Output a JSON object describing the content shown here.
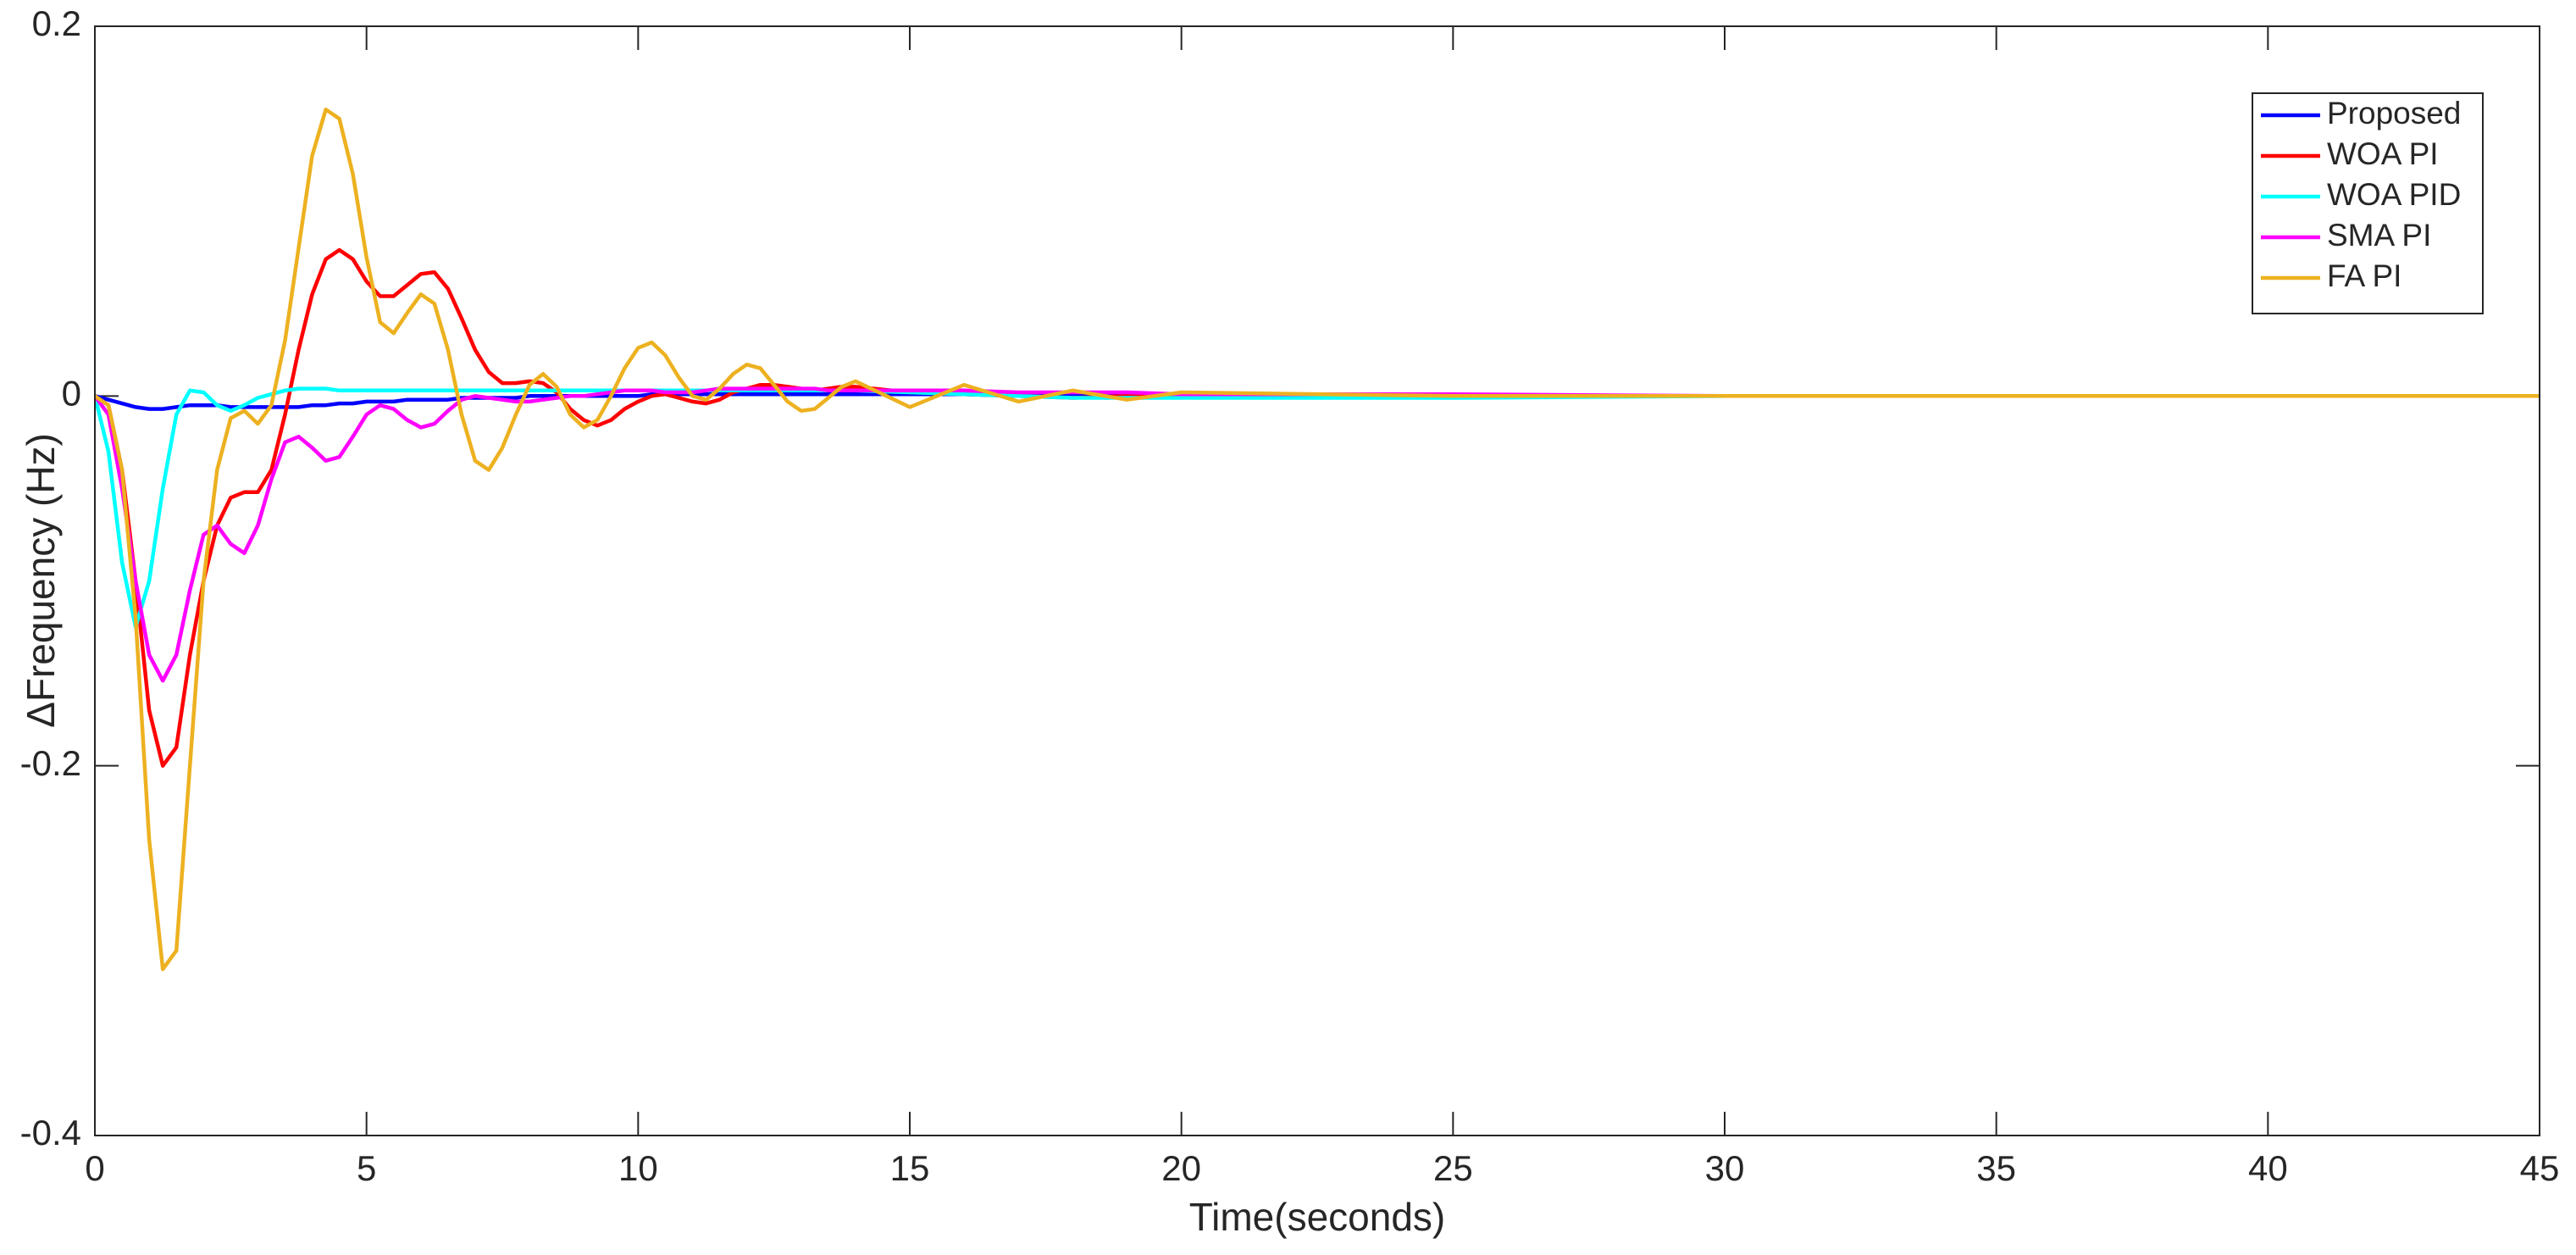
{
  "chart_data": {
    "type": "line",
    "x_label": "Time(seconds)",
    "y_label": "ΔFrequency (Hz)",
    "x": [
      0,
      0.25,
      0.5,
      0.75,
      1,
      1.25,
      1.5,
      1.75,
      2,
      2.25,
      2.5,
      2.75,
      3,
      3.25,
      3.5,
      3.75,
      4,
      4.25,
      4.5,
      4.75,
      5,
      5.25,
      5.5,
      5.75,
      6,
      6.25,
      6.5,
      6.75,
      7,
      7.25,
      7.5,
      7.75,
      8,
      8.25,
      8.5,
      8.75,
      9,
      9.25,
      9.5,
      9.75,
      10,
      10.25,
      10.5,
      10.75,
      11,
      11.25,
      11.5,
      11.75,
      12,
      12.25,
      12.5,
      12.75,
      13,
      13.25,
      13.5,
      13.75,
      14,
      15,
      16,
      17,
      18,
      19,
      20,
      25,
      30,
      35,
      40,
      45
    ],
    "series": [
      {
        "name": "Proposed",
        "color": "#0000ff",
        "values": [
          0,
          -0.002,
          -0.004,
          -0.006,
          -0.007,
          -0.007,
          -0.006,
          -0.005,
          -0.005,
          -0.005,
          -0.006,
          -0.006,
          -0.006,
          -0.006,
          -0.006,
          -0.006,
          -0.005,
          -0.005,
          -0.004,
          -0.004,
          -0.003,
          -0.003,
          -0.003,
          -0.002,
          -0.002,
          -0.002,
          -0.002,
          -0.001,
          -0.001,
          -0.001,
          -0.001,
          -0.001,
          0,
          0,
          0,
          0,
          0,
          0,
          0,
          0,
          0,
          0.001,
          0.001,
          0.001,
          0.001,
          0.001,
          0.001,
          0.001,
          0.001,
          0.001,
          0.001,
          0.001,
          0.001,
          0.001,
          0.001,
          0.001,
          0.001,
          0.001,
          0.001,
          0,
          0,
          0,
          0,
          0,
          0,
          0,
          0,
          0
        ]
      },
      {
        "name": "WOA PI",
        "color": "#ff0000",
        "values": [
          0,
          -0.005,
          -0.04,
          -0.1,
          -0.17,
          -0.2,
          -0.19,
          -0.14,
          -0.1,
          -0.07,
          -0.055,
          -0.052,
          -0.052,
          -0.04,
          -0.01,
          0.025,
          0.055,
          0.074,
          0.079,
          0.074,
          0.062,
          0.054,
          0.054,
          0.06,
          0.066,
          0.067,
          0.058,
          0.042,
          0.025,
          0.013,
          0.007,
          0.007,
          0.008,
          0.007,
          0.002,
          -0.007,
          -0.013,
          -0.016,
          -0.013,
          -0.007,
          -0.003,
          0,
          0.001,
          -0.001,
          -0.003,
          -0.004,
          -0.002,
          0.002,
          0.004,
          0.006,
          0.006,
          0.005,
          0.004,
          0.003,
          0.004,
          0.005,
          0.005,
          0.002,
          0.001,
          0,
          -0.001,
          0,
          0,
          0,
          0,
          0,
          0,
          0
        ]
      },
      {
        "name": "WOA PID",
        "color": "#00ffff",
        "values": [
          0,
          -0.03,
          -0.09,
          -0.125,
          -0.1,
          -0.05,
          -0.01,
          0.003,
          0.002,
          -0.005,
          -0.008,
          -0.005,
          -0.001,
          0.001,
          0.003,
          0.004,
          0.004,
          0.004,
          0.003,
          0.003,
          0.003,
          0.003,
          0.003,
          0.003,
          0.003,
          0.003,
          0.003,
          0.003,
          0.003,
          0.003,
          0.003,
          0.003,
          0.003,
          0.003,
          0.003,
          0.003,
          0.003,
          0.003,
          0.003,
          0.003,
          0.003,
          0.003,
          0.003,
          0.003,
          0.003,
          0.003,
          0.003,
          0.003,
          0.003,
          0.003,
          0.003,
          0.003,
          0.003,
          0.003,
          0.003,
          0.003,
          0.003,
          0.002,
          0.001,
          0,
          -0.001,
          -0.001,
          -0.001,
          -0.001,
          0,
          0,
          0,
          0
        ]
      },
      {
        "name": "SMA PI",
        "color": "#ff00ff",
        "values": [
          0,
          -0.01,
          -0.05,
          -0.1,
          -0.14,
          -0.154,
          -0.14,
          -0.105,
          -0.075,
          -0.07,
          -0.08,
          -0.085,
          -0.07,
          -0.045,
          -0.025,
          -0.022,
          -0.028,
          -0.035,
          -0.033,
          -0.022,
          -0.01,
          -0.005,
          -0.007,
          -0.013,
          -0.017,
          -0.015,
          -0.008,
          -0.002,
          0,
          -0.001,
          -0.002,
          -0.003,
          -0.003,
          -0.002,
          -0.001,
          0,
          0,
          0.001,
          0.002,
          0.003,
          0.003,
          0.003,
          0.002,
          0.002,
          0.002,
          0.003,
          0.004,
          0.004,
          0.004,
          0.004,
          0.004,
          0.004,
          0.004,
          0.004,
          0.003,
          0.003,
          0.003,
          0.003,
          0.003,
          0.002,
          0.002,
          0.002,
          0.001,
          0.001,
          0,
          0,
          0,
          0
        ]
      },
      {
        "name": "FA PI",
        "color": "#edb120",
        "values": [
          0,
          -0.005,
          -0.04,
          -0.12,
          -0.24,
          -0.31,
          -0.3,
          -0.2,
          -0.1,
          -0.04,
          -0.012,
          -0.008,
          -0.015,
          -0.005,
          0.03,
          0.08,
          0.13,
          0.155,
          0.15,
          0.12,
          0.075,
          0.04,
          0.034,
          0.045,
          0.055,
          0.05,
          0.025,
          -0.01,
          -0.035,
          -0.04,
          -0.028,
          -0.01,
          0.006,
          0.012,
          0.005,
          -0.01,
          -0.017,
          -0.013,
          0,
          0.015,
          0.026,
          0.029,
          0.022,
          0.01,
          0,
          -0.002,
          0.004,
          0.012,
          0.017,
          0.015,
          0.006,
          -0.003,
          -0.008,
          -0.007,
          -0.001,
          0.005,
          0.008,
          -0.006,
          0.006,
          -0.003,
          0.003,
          -0.002,
          0.002,
          0,
          0,
          0,
          0,
          0
        ]
      }
    ],
    "xlim": [
      0,
      45
    ],
    "xticks": [
      0,
      5,
      10,
      15,
      20,
      25,
      30,
      35,
      40,
      45
    ],
    "ylim": [
      -0.4,
      0.2
    ],
    "yticks": [
      -0.4,
      -0.2,
      0,
      0.2
    ],
    "grid": false,
    "legend": "upper right"
  }
}
